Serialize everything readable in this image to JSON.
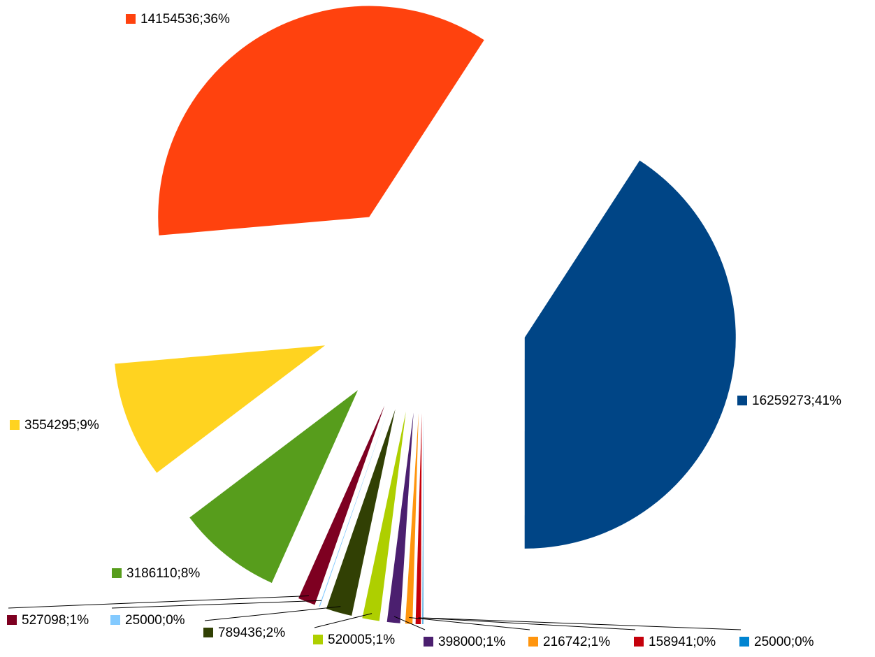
{
  "chart_data": {
    "type": "pie",
    "categories": null,
    "values": [
      16259273,
      25000,
      158941,
      216742,
      398000,
      520005,
      789436,
      25000,
      527098,
      3186110,
      3554295,
      14154536
    ],
    "value_labels": [
      "16259273;41%",
      "25000;0%",
      "158941;0%",
      "216742;1%",
      "398000;1%",
      "520005;1%",
      "789436;2%",
      "25000;0%",
      "527098;1%",
      "3186110;8%",
      "3554295;9%",
      "14154536;36%"
    ],
    "colors": [
      "#004586",
      "#0084d1",
      "#c5000b",
      "#ff950e",
      "#4b1f6f",
      "#aecf00",
      "#314004",
      "#83caff",
      "#7e0021",
      "#579d1c",
      "#ffd320",
      "#ff420e"
    ],
    "exploded": true
  }
}
